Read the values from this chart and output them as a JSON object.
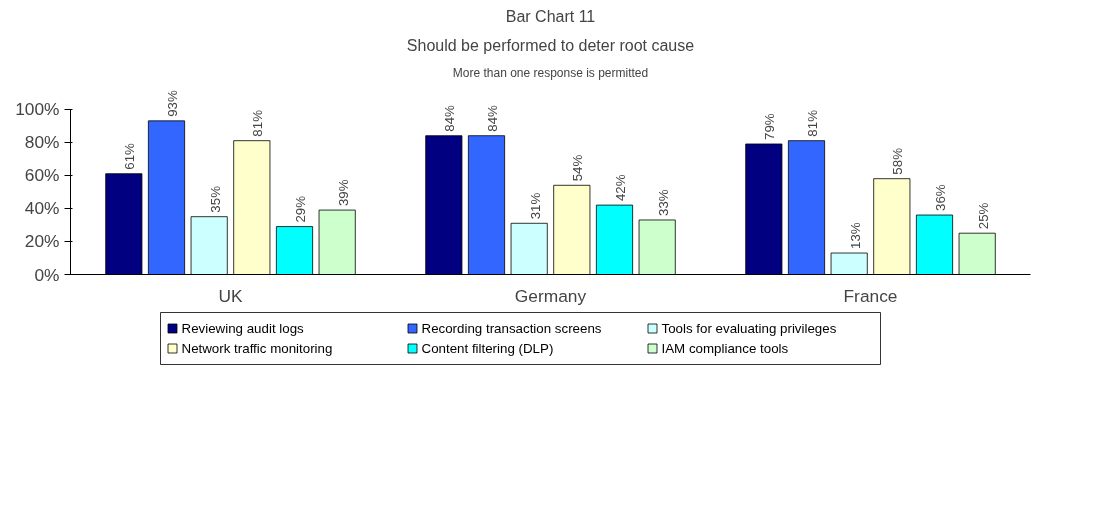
{
  "chart_data": {
    "type": "bar",
    "title": "Bar Chart 11",
    "subtitle": "Should be performed to deter root cause",
    "annotations": [
      "More than one response is permitted"
    ],
    "categories": [
      "UK",
      "Germany",
      "France"
    ],
    "series": [
      {
        "name": "Reviewing audit logs",
        "color": "#000080",
        "values": [
          61,
          84,
          79
        ],
        "value_labels": [
          "61%",
          "84%",
          "79%"
        ]
      },
      {
        "name": "Recording transaction screens",
        "color": "#3366ff",
        "values": [
          93,
          84,
          81
        ],
        "value_labels": [
          "93%",
          "84%",
          "81%"
        ]
      },
      {
        "name": "Tools for evaluating privileges",
        "color": "#ccffff",
        "values": [
          35,
          31,
          13
        ],
        "value_labels": [
          "35%",
          "31%",
          "13%"
        ]
      },
      {
        "name": "Network traffic monitoring",
        "color": "#ffffcc",
        "values": [
          81,
          54,
          58
        ],
        "value_labels": [
          "81%",
          "54%",
          "58%"
        ]
      },
      {
        "name": "Content filtering (DLP)",
        "color": "#00ffff",
        "values": [
          29,
          42,
          36
        ],
        "value_labels": [
          "29%",
          "42%",
          "36%"
        ]
      },
      {
        "name": "IAM compliance tools",
        "color": "#ccffcc",
        "values": [
          39,
          33,
          25
        ],
        "value_labels": [
          "39%",
          "33%",
          "25%"
        ]
      }
    ],
    "ylim": [
      0,
      100
    ],
    "yticks": [
      {
        "value": 0,
        "label": "0%"
      },
      {
        "value": 20,
        "label": "20%"
      },
      {
        "value": 40,
        "label": "40%"
      },
      {
        "value": 60,
        "label": "60%"
      },
      {
        "value": 80,
        "label": "80%"
      },
      {
        "value": 100,
        "label": "100%"
      }
    ],
    "grid": false,
    "legend": "bottom"
  }
}
